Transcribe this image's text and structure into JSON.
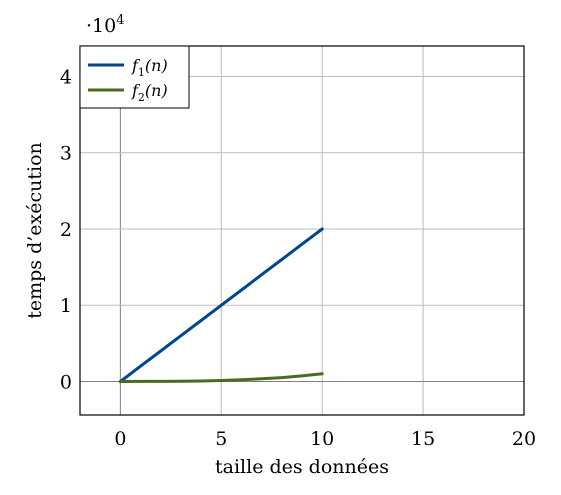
{
  "chart_data": {
    "type": "line",
    "xlabel": "taille des données",
    "ylabel": "temps d’exécution",
    "scale_label": "·10",
    "scale_exponent": "4",
    "xlim": [
      -2,
      20
    ],
    "ylim": [
      -4400,
      44000
    ],
    "x_ticks": [
      0,
      5,
      10,
      15,
      20
    ],
    "x_tick_labels": [
      "0",
      "5",
      "10",
      "15",
      "20"
    ],
    "y_ticks": [
      0,
      10000,
      20000,
      30000,
      40000
    ],
    "y_tick_labels": [
      "0",
      "1",
      "2",
      "3",
      "4"
    ],
    "grid": true,
    "legend_position": "top-left",
    "series": [
      {
        "name": "f1(n)",
        "legend_base": "f",
        "legend_sub": "1",
        "legend_arg": "(n)",
        "color": "#00468b",
        "x": [
          0,
          1,
          2,
          3,
          4,
          5,
          6,
          7,
          8,
          9,
          10
        ],
        "values": [
          0,
          2000,
          4000,
          6000,
          8000,
          10000,
          12000,
          14000,
          16000,
          18000,
          20000
        ]
      },
      {
        "name": "f2(n)",
        "legend_base": "f",
        "legend_sub": "2",
        "legend_arg": "(n)",
        "color": "#4a6b1e",
        "x": [
          0,
          1,
          2,
          3,
          4,
          5,
          6,
          7,
          8,
          9,
          10
        ],
        "values": [
          0,
          1,
          8,
          27,
          64,
          125,
          216,
          343,
          512,
          729,
          1000
        ]
      }
    ]
  }
}
